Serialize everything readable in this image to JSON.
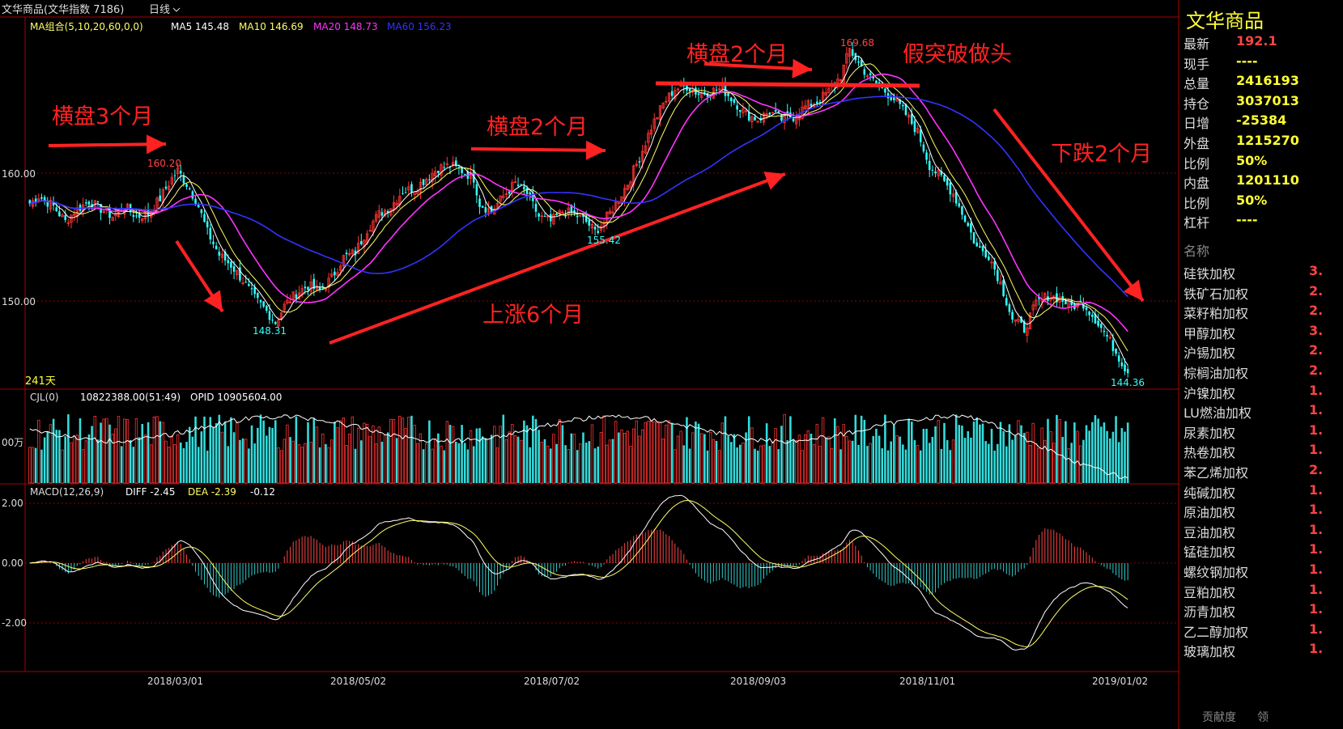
{
  "header": {
    "instrument": "文华商品(文华指数 7186)",
    "period": "日线",
    "period_icon": "chevron-down-icon"
  },
  "ma_legend": {
    "group": "MA组合(5,10,20,60,0,0)",
    "items": [
      {
        "label": "MA5 145.48",
        "color": "#ffffff"
      },
      {
        "label": "MA10 146.69",
        "color": "#ffff66"
      },
      {
        "label": "MA20 148.73",
        "color": "#ff33ff"
      },
      {
        "label": "MA60 156.23",
        "color": "#3333ff"
      }
    ]
  },
  "price_axis": {
    "labels": [
      "160.00",
      "150.00"
    ],
    "values": [
      160,
      150
    ]
  },
  "annotations": {
    "consolidation_3m": "横盘3个月",
    "consolidation_2m_a": "横盘2个月",
    "consolidation_2m_b": "横盘2个月",
    "false_breakout": "假突破做头",
    "rise_6m": "上涨6个月",
    "fall_2m": "下跌2个月",
    "days": "241天"
  },
  "price_marks": {
    "high1": "160.20",
    "low1": "148.31",
    "low2": "155.42",
    "high2": "169.68",
    "last": "144.36"
  },
  "volume_legend": {
    "label": "CJL(0)",
    "volume": "10822388.00(51:49)",
    "opid": "OPID 10905604.00",
    "unit": "00万"
  },
  "macd_legend": {
    "label": "MACD(12,26,9)",
    "diff": "DIFF -2.45",
    "dea": "DEA -2.39",
    "macd": "-0.12"
  },
  "macd_axis": {
    "labels": [
      "2.00",
      "0.00",
      "-2.00"
    ],
    "values": [
      2,
      0,
      -2
    ]
  },
  "x_axis": {
    "labels": [
      "2018/03/01",
      "2018/05/02",
      "2018/07/02",
      "2018/09/03",
      "2018/11/01",
      "2019/01/02"
    ]
  },
  "chart_data": {
    "type": "candlestick",
    "title": "文华商品(文华指数 7186) 日线",
    "key_points": [
      {
        "label": "160.20",
        "value": 160.2,
        "kind": "high"
      },
      {
        "label": "148.31",
        "value": 148.31,
        "kind": "low"
      },
      {
        "label": "155.42",
        "value": 155.42,
        "kind": "low"
      },
      {
        "label": "169.68",
        "value": 169.68,
        "kind": "high"
      },
      {
        "label": "144.36",
        "value": 144.36,
        "kind": "last"
      }
    ],
    "price_path": [
      [
        0,
        157.6
      ],
      [
        3,
        158.2
      ],
      [
        8,
        157.4
      ],
      [
        12,
        156.2
      ],
      [
        15,
        157.0
      ],
      [
        20,
        157.8
      ],
      [
        24,
        157.2
      ],
      [
        28,
        156.6
      ],
      [
        32,
        157.4
      ],
      [
        36,
        156.6
      ],
      [
        40,
        156.8
      ],
      [
        44,
        158.0
      ],
      [
        48,
        159.6
      ],
      [
        50,
        160.2
      ],
      [
        54,
        158.8
      ],
      [
        57,
        157.4
      ],
      [
        60,
        155.4
      ],
      [
        64,
        153.6
      ],
      [
        68,
        152.8
      ],
      [
        72,
        151.6
      ],
      [
        76,
        150.2
      ],
      [
        80,
        149.2
      ],
      [
        83,
        148.31
      ],
      [
        86,
        149.6
      ],
      [
        90,
        150.6
      ],
      [
        94,
        151.2
      ],
      [
        98,
        150.8
      ],
      [
        102,
        151.8
      ],
      [
        106,
        153.4
      ],
      [
        110,
        153.8
      ],
      [
        114,
        155.6
      ],
      [
        118,
        156.8
      ],
      [
        122,
        157.4
      ],
      [
        126,
        158.6
      ],
      [
        130,
        158.8
      ],
      [
        134,
        159.6
      ],
      [
        138,
        160.4
      ],
      [
        142,
        160.6
      ],
      [
        146,
        160.2
      ],
      [
        150,
        159.6
      ],
      [
        152,
        157.6
      ],
      [
        156,
        157.0
      ],
      [
        160,
        158.2
      ],
      [
        164,
        159.2
      ],
      [
        168,
        158.4
      ],
      [
        172,
        156.6
      ],
      [
        176,
        156.2
      ],
      [
        180,
        157.0
      ],
      [
        184,
        156.8
      ],
      [
        188,
        156.2
      ],
      [
        191,
        155.42
      ],
      [
        194,
        156.2
      ],
      [
        198,
        157.6
      ],
      [
        202,
        159.2
      ],
      [
        206,
        161.2
      ],
      [
        210,
        163.6
      ],
      [
        214,
        165.4
      ],
      [
        218,
        166.6
      ],
      [
        222,
        166.8
      ],
      [
        226,
        166.2
      ],
      [
        230,
        166.4
      ],
      [
        234,
        166.6
      ],
      [
        238,
        165.6
      ],
      [
        242,
        164.6
      ],
      [
        246,
        164.2
      ],
      [
        250,
        164.8
      ],
      [
        254,
        164.2
      ],
      [
        258,
        164.4
      ],
      [
        262,
        165.2
      ],
      [
        266,
        165.6
      ],
      [
        270,
        166.4
      ],
      [
        274,
        167.6
      ],
      [
        277,
        169.68
      ],
      [
        280,
        168.6
      ],
      [
        284,
        167.4
      ],
      [
        288,
        166.6
      ],
      [
        292,
        165.8
      ],
      [
        296,
        164.6
      ],
      [
        300,
        163.2
      ],
      [
        304,
        160.6
      ],
      [
        308,
        159.6
      ],
      [
        312,
        158.4
      ],
      [
        316,
        156.4
      ],
      [
        320,
        154.2
      ],
      [
        324,
        153.6
      ],
      [
        328,
        151.4
      ],
      [
        332,
        148.6
      ],
      [
        336,
        147.8
      ],
      [
        340,
        149.8
      ],
      [
        344,
        150.4
      ],
      [
        348,
        150.2
      ],
      [
        352,
        149.6
      ],
      [
        356,
        149.8
      ],
      [
        360,
        148.6
      ],
      [
        364,
        147.2
      ],
      [
        368,
        145.6
      ],
      [
        371,
        144.36
      ]
    ],
    "ma_lines": [
      {
        "name": "MA5",
        "last": 145.48
      },
      {
        "name": "MA10",
        "last": 146.69
      },
      {
        "name": "MA20",
        "last": 148.73
      },
      {
        "name": "MA60",
        "last": 156.23
      }
    ],
    "volume": {
      "last": 10822388.0,
      "opid": 10905604.0
    },
    "macd": {
      "diff": -2.45,
      "dea": -2.39,
      "macd": -0.12
    }
  },
  "sidebar": {
    "title": "文华商品",
    "quote": [
      {
        "k": "最新",
        "v": "192.1",
        "color": "#ff4444"
      },
      {
        "k": "现手",
        "v": "----",
        "color": "#ffff33"
      },
      {
        "k": "总量",
        "v": "2416193",
        "color": "#ffff33"
      },
      {
        "k": "持仓",
        "v": "3037013",
        "color": "#ffff33"
      },
      {
        "k": "日增",
        "v": "-25384",
        "color": "#ffff33"
      },
      {
        "k": "外盘",
        "v": "1215270",
        "color": "#ffff33"
      },
      {
        "k": "比例",
        "v": "50%",
        "color": "#ffff33"
      },
      {
        "k": "内盘",
        "v": "1201110",
        "color": "#ffff33"
      },
      {
        "k": "比例",
        "v": "50%",
        "color": "#ffff33"
      },
      {
        "k": "杠杆",
        "v": "----",
        "color": "#ffff33"
      }
    ],
    "name_header": "名称",
    "list": [
      {
        "n": "硅铁加权",
        "p": "3."
      },
      {
        "n": "铁矿石加权",
        "p": "2."
      },
      {
        "n": "菜籽粕加权",
        "p": "2."
      },
      {
        "n": "甲醇加权",
        "p": "3."
      },
      {
        "n": "沪锡加权",
        "p": "2."
      },
      {
        "n": "棕榈油加权",
        "p": "2."
      },
      {
        "n": "沪镍加权",
        "p": "1."
      },
      {
        "n": "LU燃油加权",
        "p": "1."
      },
      {
        "n": "尿素加权",
        "p": "1."
      },
      {
        "n": "热卷加权",
        "p": "1."
      },
      {
        "n": "苯乙烯加权",
        "p": "2."
      },
      {
        "n": "纯碱加权",
        "p": "1."
      },
      {
        "n": "原油加权",
        "p": "1."
      },
      {
        "n": "豆油加权",
        "p": "1."
      },
      {
        "n": "锰硅加权",
        "p": "1."
      },
      {
        "n": "螺纹钢加权",
        "p": "1."
      },
      {
        "n": "豆粕加权",
        "p": "1."
      },
      {
        "n": "沥青加权",
        "p": "1."
      },
      {
        "n": "乙二醇加权",
        "p": "1."
      },
      {
        "n": "玻璃加权",
        "p": "1."
      }
    ],
    "tabs": [
      "贡献度",
      "领"
    ]
  }
}
